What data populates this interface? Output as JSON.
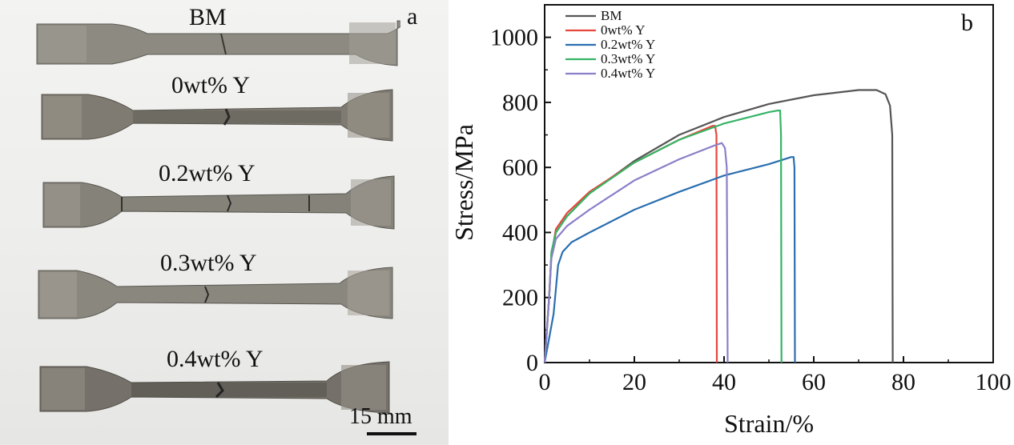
{
  "photo": {
    "panel_letter": "a",
    "specimens": [
      {
        "label": "BM",
        "fracture": "tapered"
      },
      {
        "label": "0wt% Y",
        "fracture": "necked"
      },
      {
        "label": "0.2wt% Y",
        "fracture": "necked"
      },
      {
        "label": "0.3wt% Y",
        "fracture": "necked"
      },
      {
        "label": "0.4wt% Y",
        "fracture": "necked"
      }
    ],
    "scale_bar_label": "15 mm"
  },
  "chart_data": {
    "panel_letter": "b",
    "type": "line",
    "xlabel": "Strain/%",
    "ylabel": "Stress/MPa",
    "xlim": [
      0,
      100
    ],
    "ylim": [
      0,
      1100
    ],
    "xticks": [
      0,
      20,
      40,
      60,
      80,
      100
    ],
    "yticks": [
      0,
      200,
      400,
      600,
      800,
      1000
    ],
    "grid": false,
    "legend_position": "top-left",
    "series": [
      {
        "name": "BM",
        "color": "#555555",
        "points": [
          [
            0,
            0
          ],
          [
            1,
            200
          ],
          [
            1.5,
            330
          ],
          [
            2.5,
            400
          ],
          [
            5,
            450
          ],
          [
            10,
            520
          ],
          [
            20,
            620
          ],
          [
            30,
            700
          ],
          [
            40,
            755
          ],
          [
            50,
            795
          ],
          [
            60,
            822
          ],
          [
            70,
            838
          ],
          [
            74,
            838
          ],
          [
            76,
            825
          ],
          [
            77,
            790
          ],
          [
            77.5,
            700
          ],
          [
            77.6,
            0
          ]
        ]
      },
      {
        "name": "0wt% Y",
        "color": "#e8473b",
        "points": [
          [
            0,
            0
          ],
          [
            1,
            200
          ],
          [
            1.5,
            330
          ],
          [
            2.5,
            410
          ],
          [
            5,
            460
          ],
          [
            10,
            525
          ],
          [
            20,
            615
          ],
          [
            30,
            685
          ],
          [
            37.5,
            728
          ],
          [
            38,
            728
          ],
          [
            38.3,
            700
          ],
          [
            38.4,
            0
          ]
        ]
      },
      {
        "name": "0.2wt% Y",
        "color": "#2b6fb0",
        "points": [
          [
            0,
            0
          ],
          [
            2,
            150
          ],
          [
            3,
            300
          ],
          [
            4,
            340
          ],
          [
            6,
            370
          ],
          [
            10,
            400
          ],
          [
            20,
            470
          ],
          [
            30,
            525
          ],
          [
            40,
            575
          ],
          [
            50,
            610
          ],
          [
            55,
            632
          ],
          [
            55.5,
            632
          ],
          [
            55.7,
            600
          ],
          [
            55.8,
            0
          ]
        ]
      },
      {
        "name": "0.3wt% Y",
        "color": "#35b466",
        "points": [
          [
            0,
            0
          ],
          [
            1,
            200
          ],
          [
            1.5,
            340
          ],
          [
            2.5,
            400
          ],
          [
            5,
            450
          ],
          [
            10,
            520
          ],
          [
            20,
            615
          ],
          [
            30,
            685
          ],
          [
            40,
            735
          ],
          [
            50,
            770
          ],
          [
            52,
            775
          ],
          [
            52.5,
            775
          ],
          [
            52.7,
            700
          ],
          [
            52.8,
            0
          ]
        ]
      },
      {
        "name": "0.4wt% Y",
        "color": "#8b7fc8",
        "points": [
          [
            0,
            0
          ],
          [
            1,
            200
          ],
          [
            1.5,
            320
          ],
          [
            2.5,
            380
          ],
          [
            5,
            420
          ],
          [
            10,
            470
          ],
          [
            20,
            560
          ],
          [
            30,
            625
          ],
          [
            38,
            668
          ],
          [
            39.5,
            675
          ],
          [
            40.2,
            660
          ],
          [
            40.6,
            600
          ],
          [
            40.8,
            0
          ]
        ]
      }
    ]
  }
}
